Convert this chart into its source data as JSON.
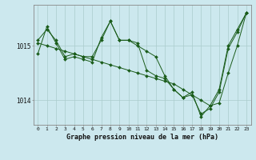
{
  "title": "Graphe pression niveau de la mer (hPa)",
  "bg_color": "#cce8ee",
  "grid_color": "#aacccc",
  "line_color": "#1a5c1a",
  "xlim": [
    -0.5,
    23.5
  ],
  "ylim": [
    1013.55,
    1015.75
  ],
  "yticks": [
    1014.0,
    1015.0
  ],
  "xticks": [
    0,
    1,
    2,
    3,
    4,
    5,
    6,
    7,
    8,
    9,
    10,
    11,
    12,
    13,
    14,
    15,
    16,
    17,
    18,
    19,
    20,
    21,
    22,
    23
  ],
  "series_trend": [
    1015.05,
    1015.0,
    1014.95,
    1014.9,
    1014.85,
    1014.8,
    1014.75,
    1014.7,
    1014.65,
    1014.6,
    1014.55,
    1014.5,
    1014.45,
    1014.4,
    1014.35,
    1014.3,
    1014.2,
    1014.1,
    1014.0,
    1013.9,
    1013.95,
    1014.5,
    1015.0,
    1015.6
  ],
  "series_main": [
    1014.85,
    1015.35,
    1015.05,
    1014.75,
    1014.8,
    1014.75,
    1014.7,
    1015.15,
    1015.45,
    1015.1,
    1015.1,
    1015.05,
    1014.55,
    1014.45,
    1014.4,
    1014.2,
    1014.05,
    1014.1,
    1013.75,
    1013.85,
    1014.15,
    1014.95,
    1015.25,
    1015.6
  ],
  "series_alt": [
    1015.1,
    1015.3,
    1015.1,
    1014.8,
    1014.85,
    1014.8,
    1014.8,
    1015.1,
    1015.45,
    1015.1,
    1015.1,
    1015.0,
    1014.9,
    1014.8,
    1014.45,
    1014.2,
    1014.05,
    1014.15,
    1013.7,
    1013.9,
    1014.2,
    1015.0,
    1015.3,
    1015.6
  ]
}
